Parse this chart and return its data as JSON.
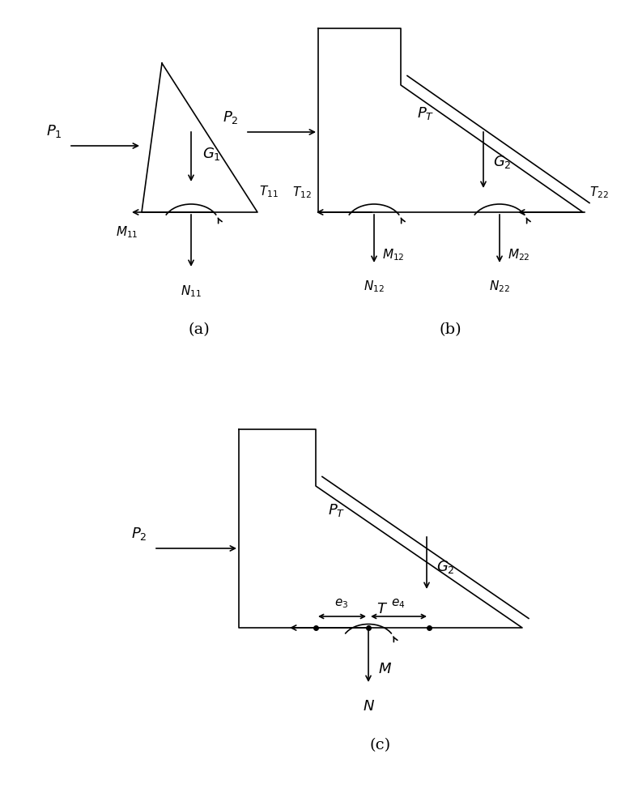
{
  "bg_color": "#ffffff",
  "line_color": "#000000",
  "arrow_color": "#000000",
  "label_a": "(a)",
  "label_b": "(b)",
  "label_c": "(c)"
}
